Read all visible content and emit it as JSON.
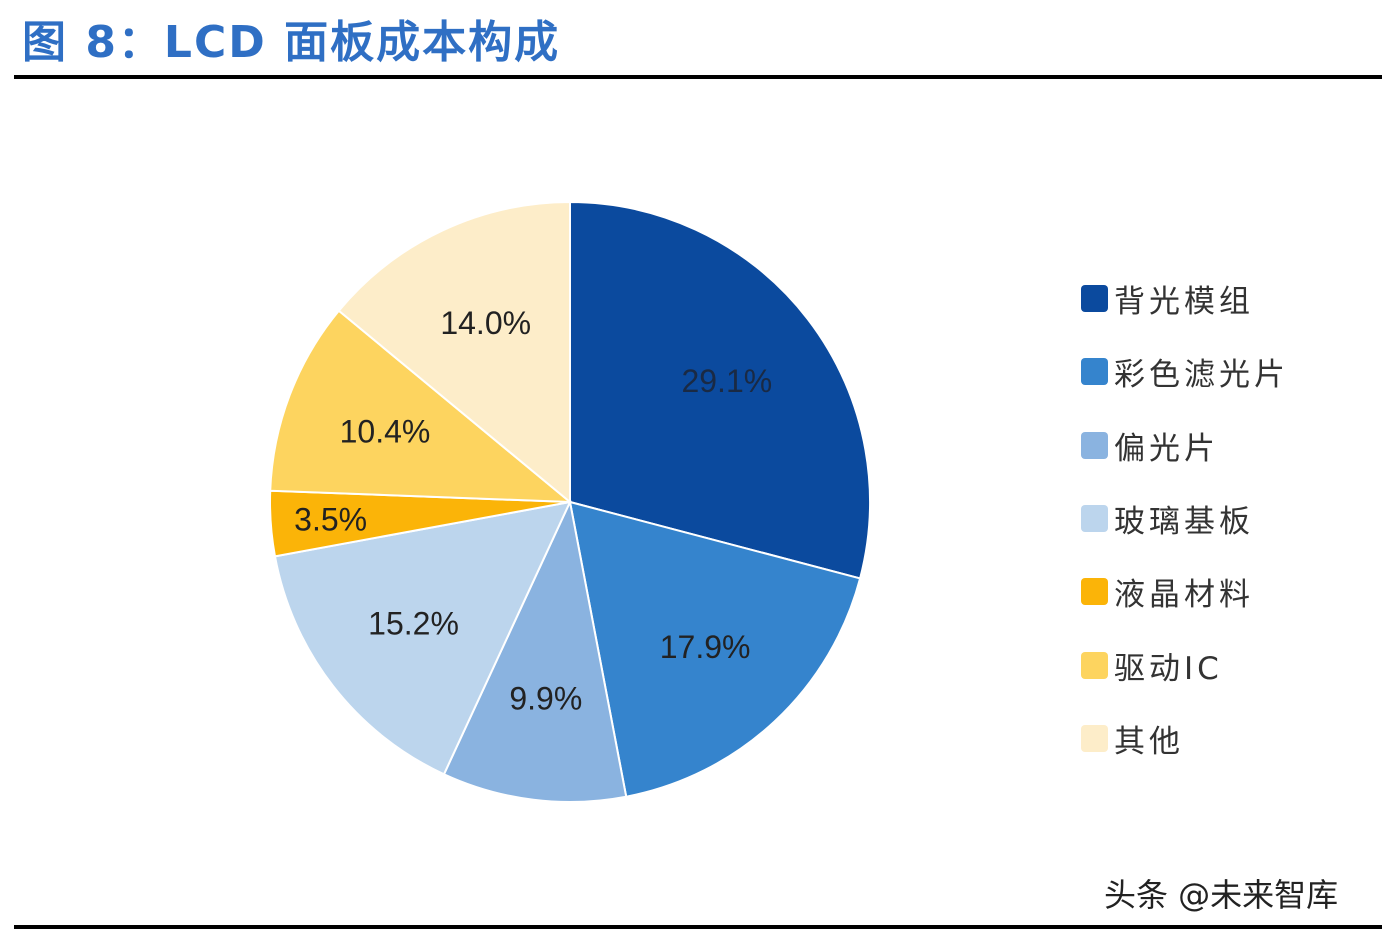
{
  "title": "图 8：LCD 面板成本构成",
  "watermark": "头条 @未来智库",
  "chart_data": {
    "type": "pie",
    "title": "图 8：LCD 面板成本构成",
    "start": "12 o'clock",
    "direction": "clockwise",
    "legend_position": "right",
    "slices": [
      {
        "name": "背光模组",
        "value": 29.1,
        "label": "29.1%",
        "color": "#0b4a9e"
      },
      {
        "name": "彩色滤光片",
        "value": 17.9,
        "label": "17.9%",
        "color": "#3584cd"
      },
      {
        "name": "偏光片",
        "value": 9.9,
        "label": "9.9%",
        "color": "#8ab3e0"
      },
      {
        "name": "玻璃基板",
        "value": 15.2,
        "label": "15.2%",
        "color": "#bcd5ed"
      },
      {
        "name": "液晶材料",
        "value": 3.5,
        "label": "3.5%",
        "color": "#fbb408"
      },
      {
        "name": "驱动IC",
        "value": 10.4,
        "label": "10.4%",
        "color": "#fdd45f"
      },
      {
        "name": "其他",
        "value": 14.0,
        "label": "14.0%",
        "color": "#fdedc9"
      }
    ]
  }
}
